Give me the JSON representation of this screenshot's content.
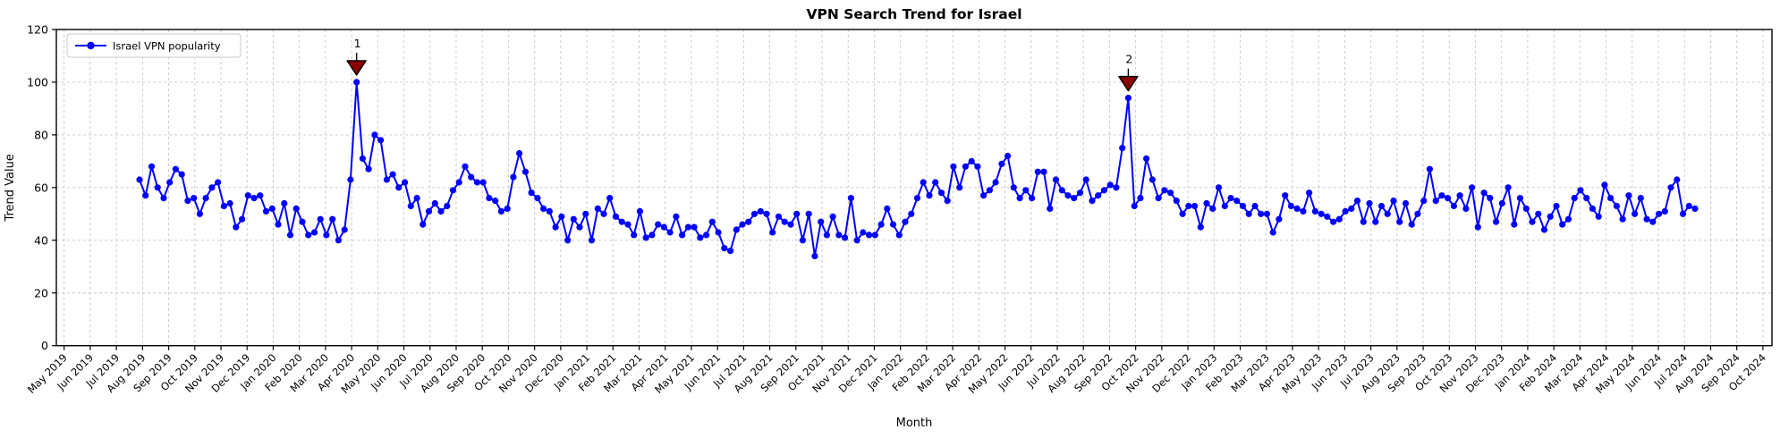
{
  "chart_data": {
    "type": "line",
    "title": "VPN Search Trend for Israel",
    "xlabel": "Month",
    "ylabel": "Trend Value",
    "ylim": [
      0,
      120
    ],
    "yticks": [
      0,
      20,
      40,
      60,
      80,
      100,
      120
    ],
    "grid": true,
    "grid_style": "dashed",
    "legend_position": "upper-left",
    "x_tick_labels": [
      "May 2019",
      "Jun 2019",
      "Jul 2019",
      "Aug 2019",
      "Sep 2019",
      "Oct 2019",
      "Nov 2019",
      "Dec 2019",
      "Jan 2020",
      "Feb 2020",
      "Mar 2020",
      "Apr 2020",
      "May 2020",
      "Jun 2020",
      "Jul 2020",
      "Aug 2020",
      "Sep 2020",
      "Oct 2020",
      "Nov 2020",
      "Dec 2020",
      "Jan 2021",
      "Feb 2021",
      "Mar 2021",
      "Apr 2021",
      "May 2021",
      "Jun 2021",
      "Jul 2021",
      "Aug 2021",
      "Sep 2021",
      "Oct 2021",
      "Nov 2021",
      "Dec 2021",
      "Jan 2022",
      "Feb 2022",
      "Mar 2022",
      "Apr 2022",
      "May 2022",
      "Jun 2022",
      "Jul 2022",
      "Aug 2022",
      "Sep 2022",
      "Oct 2022",
      "Nov 2022",
      "Dec 2022",
      "Jan 2023",
      "Feb 2023",
      "Mar 2023",
      "Apr 2023",
      "May 2023",
      "Jun 2023",
      "Jul 2023",
      "Aug 2023",
      "Sep 2023",
      "Oct 2023",
      "Nov 2023",
      "Dec 2023",
      "Jan 2024",
      "Feb 2024",
      "Mar 2024",
      "Apr 2024",
      "May 2024",
      "Jun 2024",
      "Jul 2024",
      "Aug 2024",
      "Sep 2024",
      "Oct 2024"
    ],
    "series": [
      {
        "name": "Israel VPN popularity",
        "color": "#0000ff",
        "marker": "circle",
        "frequency": "weekly",
        "first_point_month": "Aug 2019",
        "last_point_month": "Jul 2024",
        "values": [
          63,
          57,
          68,
          60,
          56,
          62,
          67,
          65,
          55,
          56,
          50,
          56,
          60,
          62,
          53,
          54,
          45,
          48,
          57,
          56,
          57,
          51,
          52,
          46,
          54,
          42,
          52,
          47,
          42,
          43,
          48,
          42,
          48,
          40,
          44,
          63,
          100,
          71,
          67,
          80,
          78,
          63,
          65,
          60,
          62,
          53,
          56,
          46,
          51,
          54,
          51,
          53,
          59,
          62,
          68,
          64,
          62,
          62,
          56,
          55,
          51,
          52,
          64,
          73,
          66,
          58,
          56,
          52,
          51,
          45,
          49,
          40,
          48,
          45,
          50,
          40,
          52,
          50,
          56,
          49,
          47,
          46,
          42,
          51,
          41,
          42,
          46,
          45,
          43,
          49,
          42,
          45,
          45,
          41,
          42,
          47,
          43,
          37,
          36,
          44,
          46,
          47,
          50,
          51,
          50,
          43,
          49,
          47,
          46,
          50,
          40,
          50,
          34,
          47,
          42,
          49,
          42,
          41,
          56,
          40,
          43,
          42,
          42,
          46,
          52,
          46,
          42,
          47,
          50,
          56,
          62,
          57,
          62,
          58,
          55,
          68,
          60,
          68,
          70,
          68,
          57,
          59,
          62,
          69,
          72,
          60,
          56,
          59,
          56,
          66,
          66,
          52,
          63,
          59,
          57,
          56,
          58,
          63,
          55,
          57,
          59,
          61,
          60,
          75,
          94,
          53,
          56,
          71,
          63,
          56,
          59,
          58,
          55,
          50,
          53,
          53,
          45,
          54,
          52,
          60,
          53,
          56,
          55,
          53,
          50,
          53,
          50,
          50,
          43,
          48,
          57,
          53,
          52,
          51,
          58,
          51,
          50,
          49,
          47,
          48,
          51,
          52,
          55,
          47,
          54,
          47,
          53,
          50,
          55,
          47,
          54,
          46,
          50,
          55,
          67,
          55,
          57,
          56,
          53,
          57,
          52,
          60,
          45,
          58,
          56,
          47,
          54,
          60,
          46,
          56,
          52,
          47,
          50,
          44,
          49,
          53,
          46,
          48,
          56,
          59,
          56,
          52,
          49,
          61,
          56,
          53,
          48,
          57,
          50,
          56,
          48,
          47,
          50,
          51,
          60,
          63,
          50,
          53,
          52
        ]
      }
    ],
    "annotations": [
      {
        "label": "1",
        "point_index": 36,
        "value": 100,
        "month": "Apr 2020",
        "color": "#8b0000"
      },
      {
        "label": "2",
        "point_index": 164,
        "value": 94,
        "month": "Oct 2022",
        "color": "#8b0000"
      }
    ]
  }
}
